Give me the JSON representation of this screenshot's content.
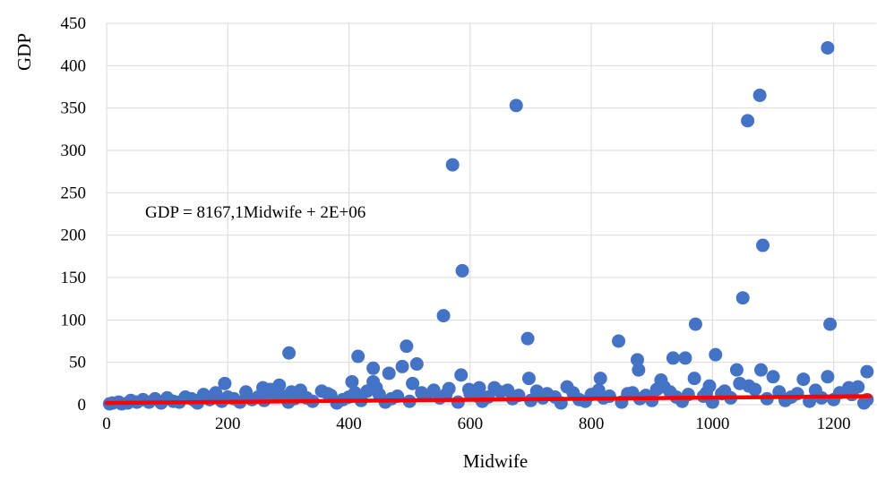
{
  "chart_data": {
    "type": "scatter",
    "xlabel": "Midwife",
    "ylabel": "GDP",
    "xlim": [
      0,
      1270
    ],
    "ylim": [
      0,
      450
    ],
    "x_ticks": [
      "0",
      "200",
      "400",
      "600",
      "800",
      "1000",
      "1200"
    ],
    "y_ticks": [
      "0",
      "50",
      "100",
      "150",
      "200",
      "250",
      "300",
      "350",
      "400",
      "450"
    ],
    "grid": true,
    "point_color": "#4472C4",
    "trendline": {
      "label": "GDP = 8167,1Midwife + 2E+06",
      "color": "#FF0000",
      "points": [
        [
          0,
          2
        ],
        [
          1260,
          10
        ]
      ]
    },
    "series": [
      {
        "points": [
          [
            1190,
            421
          ],
          [
            1078,
            365
          ],
          [
            676,
            353
          ],
          [
            1058,
            335
          ],
          [
            571,
            283
          ],
          [
            1083,
            188
          ],
          [
            587,
            158
          ],
          [
            1050,
            126
          ],
          [
            556,
            105
          ],
          [
            972,
            95
          ],
          [
            1194,
            95
          ],
          [
            695,
            78
          ],
          [
            845,
            75
          ],
          [
            495,
            69
          ],
          [
            301,
            61
          ],
          [
            1005,
            59
          ],
          [
            415,
            57
          ],
          [
            935,
            55
          ],
          [
            955,
            55
          ],
          [
            876,
            53
          ],
          [
            512,
            48
          ],
          [
            488,
            45
          ],
          [
            440,
            43
          ],
          [
            878,
            41
          ],
          [
            1040,
            41
          ],
          [
            1080,
            41
          ],
          [
            1255,
            39
          ],
          [
            466,
            37
          ],
          [
            585,
            35
          ],
          [
            1100,
            33
          ],
          [
            1190,
            33
          ],
          [
            697,
            31
          ],
          [
            815,
            31
          ],
          [
            970,
            31
          ],
          [
            1150,
            30
          ],
          [
            915,
            29
          ],
          [
            405,
            27
          ],
          [
            440,
            27
          ],
          [
            505,
            25
          ],
          [
            195,
            25
          ],
          [
            285,
            23
          ],
          [
            1060,
            22
          ],
          [
            1240,
            21
          ],
          [
            920,
            21
          ],
          [
            760,
            21
          ],
          [
            640,
            20
          ],
          [
            615,
            20
          ],
          [
            598,
            18
          ],
          [
            540,
            17
          ],
          [
            430,
            16
          ],
          [
            355,
            16
          ],
          [
            320,
            17
          ],
          [
            270,
            18
          ],
          [
            230,
            15
          ],
          [
            180,
            14
          ],
          [
            160,
            12
          ],
          [
            130,
            9
          ],
          [
            100,
            8
          ],
          [
            80,
            7
          ],
          [
            60,
            6
          ],
          [
            40,
            5
          ],
          [
            20,
            3
          ],
          [
            10,
            2
          ],
          [
            5,
            1
          ],
          [
            35,
            2
          ],
          [
            70,
            3
          ],
          [
            110,
            4
          ],
          [
            145,
            5
          ],
          [
            170,
            6
          ],
          [
            210,
            7
          ],
          [
            250,
            9
          ],
          [
            290,
            10
          ],
          [
            330,
            8
          ],
          [
            370,
            11
          ],
          [
            400,
            9
          ],
          [
            450,
            12
          ],
          [
            480,
            10
          ],
          [
            520,
            14
          ],
          [
            560,
            12
          ],
          [
            600,
            13
          ],
          [
            650,
            15
          ],
          [
            680,
            11
          ],
          [
            710,
            16
          ],
          [
            740,
            9
          ],
          [
            770,
            14
          ],
          [
            800,
            12
          ],
          [
            830,
            10
          ],
          [
            860,
            13
          ],
          [
            890,
            11
          ],
          [
            930,
            15
          ],
          [
            960,
            12
          ],
          [
            990,
            14
          ],
          [
            1020,
            16
          ],
          [
            1070,
            18
          ],
          [
            1110,
            15
          ],
          [
            1140,
            13
          ],
          [
            1170,
            17
          ],
          [
            1210,
            14
          ],
          [
            1230,
            12
          ],
          [
            1255,
            6
          ],
          [
            1250,
            2
          ],
          [
            1000,
            3
          ],
          [
            950,
            4
          ],
          [
            900,
            5
          ],
          [
            850,
            3
          ],
          [
            790,
            4
          ],
          [
            750,
            2
          ],
          [
            700,
            5
          ],
          [
            620,
            4
          ],
          [
            580,
            3
          ],
          [
            500,
            4
          ],
          [
            460,
            3
          ],
          [
            420,
            5
          ],
          [
            380,
            2
          ],
          [
            340,
            4
          ],
          [
            300,
            3
          ],
          [
            260,
            5
          ],
          [
            220,
            3
          ],
          [
            190,
            4
          ],
          [
            150,
            2
          ],
          [
            120,
            3
          ],
          [
            90,
            2
          ],
          [
            50,
            3
          ],
          [
            25,
            1
          ],
          [
            1120,
            5
          ],
          [
            1160,
            4
          ],
          [
            1200,
            6
          ],
          [
            1180,
            8
          ],
          [
            1130,
            9
          ],
          [
            1090,
            7
          ],
          [
            1030,
            8
          ],
          [
            985,
            10
          ],
          [
            940,
            9
          ],
          [
            880,
            7
          ],
          [
            820,
            8
          ],
          [
            780,
            6
          ],
          [
            720,
            8
          ],
          [
            670,
            7
          ],
          [
            630,
            9
          ],
          [
            550,
            8
          ],
          [
            470,
            7
          ],
          [
            390,
            6
          ],
          [
            310,
            7
          ],
          [
            240,
            6
          ],
          [
            200,
            9
          ],
          [
            140,
            7
          ],
          [
            1225,
            20
          ],
          [
            1045,
            25
          ],
          [
            1015,
            13
          ],
          [
            995,
            22
          ],
          [
            908,
            18
          ],
          [
            868,
            14
          ],
          [
            812,
            17
          ],
          [
            727,
            13
          ],
          [
            662,
            17
          ],
          [
            612,
            10
          ],
          [
            565,
            19
          ],
          [
            528,
            11
          ],
          [
            445,
            20
          ],
          [
            410,
            14
          ],
          [
            365,
            13
          ],
          [
            275,
            13
          ],
          [
            258,
            20
          ],
          [
            305,
            15
          ]
        ]
      }
    ]
  }
}
